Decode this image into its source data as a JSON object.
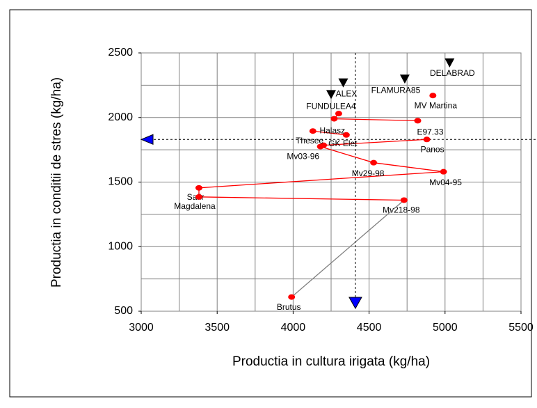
{
  "chart_data": {
    "type": "scatter",
    "xlabel": "Productia in cultura irigata (kg/ha)",
    "ylabel": "Productia in conditii de stres (kg/ha)",
    "xlim": [
      3000,
      5500
    ],
    "ylim": [
      500,
      2500
    ],
    "xticks": [
      3000,
      3500,
      4000,
      4500,
      5000,
      5500
    ],
    "yticks": [
      500,
      1000,
      1500,
      2000,
      2500
    ],
    "xgrid": [
      3000,
      3250,
      3500,
      3750,
      4000,
      4250,
      4500,
      4750,
      5000,
      5250,
      5500
    ],
    "ygrid": [
      500,
      750,
      1000,
      1250,
      1500,
      1750,
      2000,
      2250,
      2500
    ],
    "grid": true,
    "series": [
      {
        "color": "#ff0000",
        "line_color": "#ff0000",
        "marker": "circle",
        "x": [
          4300,
          4270,
          4820,
          null,
          4130,
          4350,
          null,
          4200,
          4880,
          null,
          4180,
          4530,
          4990,
          3380,
          3380,
          4730,
          null,
          4920
        ],
        "values": [
          2030,
          1990,
          1975,
          null,
          1895,
          1865,
          null,
          1785,
          1830,
          null,
          1775,
          1650,
          1580,
          1455,
          1385,
          1360,
          null,
          2170
        ],
        "point_labels": [
          "FUNDULEA4",
          null,
          "E97.33",
          null,
          "Halasz",
          "GK Elet",
          null,
          "Thesee",
          "Panos",
          null,
          "Mv03-96",
          "Mv29-98",
          "Mv04-95",
          "Safir",
          "Magdalena",
          "Mv218-98",
          null,
          "MV Martina"
        ]
      },
      {
        "color": "#ff0000",
        "line_color": "#808080",
        "marker": "circle",
        "x": [
          4730,
          3990
        ],
        "values": [
          1360,
          610
        ],
        "point_labels": [
          null,
          "Brutus"
        ]
      },
      {
        "color": "#000000",
        "line_color": null,
        "marker": "triangle-down",
        "x": [
          4250,
          4330,
          4735,
          5030
        ],
        "values": [
          2180,
          2270,
          2300,
          2425
        ],
        "point_labels": [
          "ALEX",
          null,
          "FLAMURA85",
          "DELABRAD"
        ]
      }
    ],
    "reference_lines": {
      "x": 4410,
      "y": 1830,
      "color": "#0000ff"
    }
  }
}
